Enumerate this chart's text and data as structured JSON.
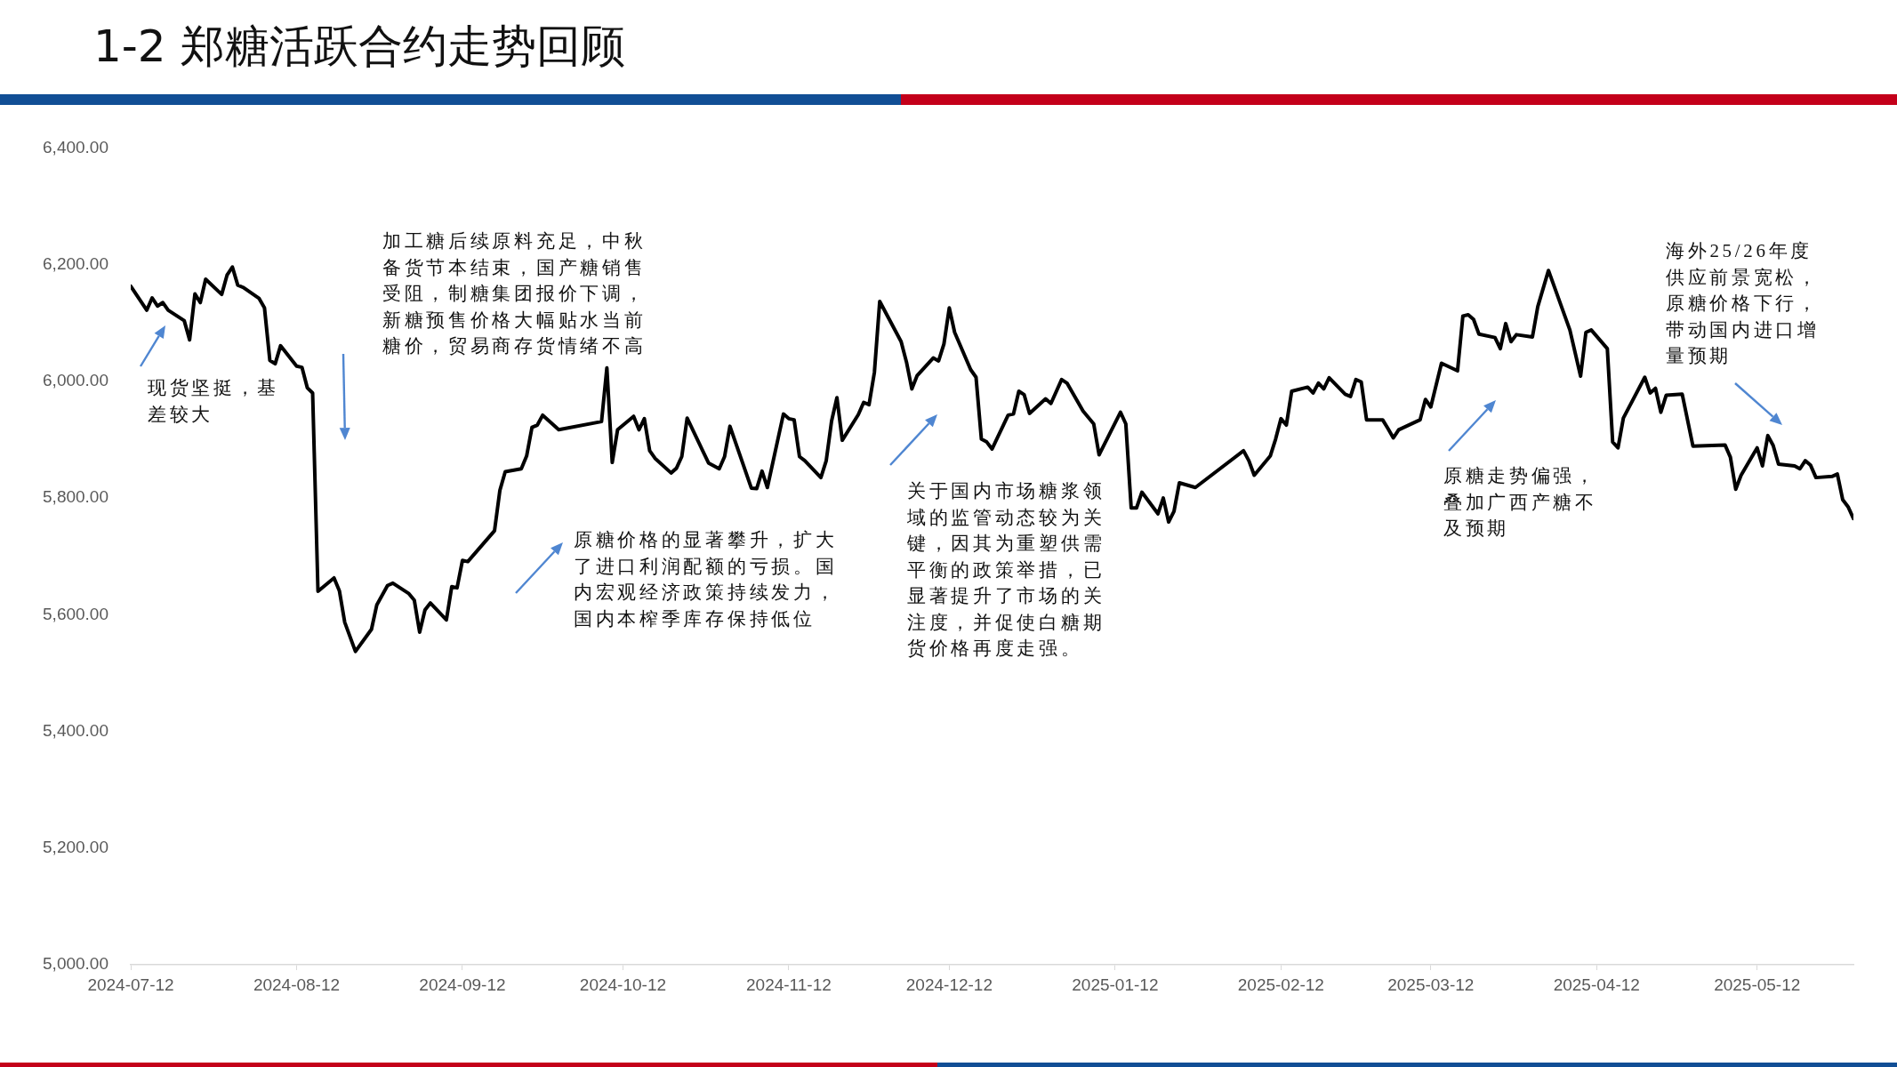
{
  "chart_data": {
    "type": "line",
    "title": "1-2 郑糖活跃合约走势回顾",
    "x": [
      "2024-07-12",
      "2024-07-15",
      "2024-07-16",
      "2024-07-17",
      "2024-07-18",
      "2024-07-19",
      "2024-07-22",
      "2024-07-23",
      "2024-07-24",
      "2024-07-25",
      "2024-07-26",
      "2024-07-29",
      "2024-07-30",
      "2024-07-31",
      "2024-08-01",
      "2024-08-02",
      "2024-08-05",
      "2024-08-06",
      "2024-08-07",
      "2024-08-08",
      "2024-08-09",
      "2024-08-12",
      "2024-08-13",
      "2024-08-14",
      "2024-08-15",
      "2024-08-16",
      "2024-08-19",
      "2024-08-20",
      "2024-08-21",
      "2024-08-23",
      "2024-08-26",
      "2024-08-27",
      "2024-08-29",
      "2024-08-30",
      "2024-09-02",
      "2024-09-03",
      "2024-09-04",
      "2024-09-05",
      "2024-09-06",
      "2024-09-09",
      "2024-09-10",
      "2024-09-11",
      "2024-09-12",
      "2024-09-13",
      "2024-09-18",
      "2024-09-19",
      "2024-09-20",
      "2024-09-23",
      "2024-09-24",
      "2024-09-25",
      "2024-09-26",
      "2024-09-27",
      "2024-09-30",
      "2024-10-08",
      "2024-10-09",
      "2024-10-10",
      "2024-10-11",
      "2024-10-14",
      "2024-10-15",
      "2024-10-16",
      "2024-10-17",
      "2024-10-18",
      "2024-10-21",
      "2024-10-22",
      "2024-10-23",
      "2024-10-24",
      "2024-10-28",
      "2024-10-30",
      "2024-10-31",
      "2024-11-01",
      "2024-11-05",
      "2024-11-06",
      "2024-11-07",
      "2024-11-08",
      "2024-11-11",
      "2024-11-12",
      "2024-11-13",
      "2024-11-14",
      "2024-11-15",
      "2024-11-18",
      "2024-11-19",
      "2024-11-20",
      "2024-11-21",
      "2024-11-22",
      "2024-11-25",
      "2024-11-26",
      "2024-11-27",
      "2024-11-28",
      "2024-11-29",
      "2024-12-03",
      "2024-12-04",
      "2024-12-05",
      "2024-12-06",
      "2024-12-09",
      "2024-12-10",
      "2024-12-11",
      "2024-12-12",
      "2024-12-13",
      "2024-12-16",
      "2024-12-17",
      "2024-12-18",
      "2024-12-19",
      "2024-12-20",
      "2024-12-23",
      "2024-12-24",
      "2024-12-25",
      "2024-12-26",
      "2024-12-27",
      "2024-12-30",
      "2024-12-31",
      "2025-01-02",
      "2025-01-03",
      "2025-01-06",
      "2025-01-07",
      "2025-01-08",
      "2025-01-09",
      "2025-01-13",
      "2025-01-14",
      "2025-01-15",
      "2025-01-16",
      "2025-01-17",
      "2025-01-20",
      "2025-01-21",
      "2025-01-22",
      "2025-01-23",
      "2025-01-24",
      "2025-01-27",
      "2025-02-05",
      "2025-02-06",
      "2025-02-07",
      "2025-02-10",
      "2025-02-11",
      "2025-02-12",
      "2025-02-13",
      "2025-02-14",
      "2025-02-17",
      "2025-02-18",
      "2025-02-19",
      "2025-02-20",
      "2025-02-21",
      "2025-02-24",
      "2025-02-25",
      "2025-02-26",
      "2025-02-27",
      "2025-02-28",
      "2025-03-03",
      "2025-03-04",
      "2025-03-05",
      "2025-03-06",
      "2025-03-10",
      "2025-03-11",
      "2025-03-12",
      "2025-03-14",
      "2025-03-17",
      "2025-03-18",
      "2025-03-19",
      "2025-03-20",
      "2025-03-21",
      "2025-03-24",
      "2025-03-25",
      "2025-03-26",
      "2025-03-27",
      "2025-03-28",
      "2025-03-31",
      "2025-04-01",
      "2025-04-03",
      "2025-04-07",
      "2025-04-09",
      "2025-04-10",
      "2025-04-11",
      "2025-04-14",
      "2025-04-15",
      "2025-04-16",
      "2025-04-17",
      "2025-04-21",
      "2025-04-22",
      "2025-04-23",
      "2025-04-24",
      "2025-04-25",
      "2025-04-28",
      "2025-04-30",
      "2025-05-06",
      "2025-05-07",
      "2025-05-08",
      "2025-05-09",
      "2025-05-12",
      "2025-05-13",
      "2025-05-14",
      "2025-05-15",
      "2025-05-16",
      "2025-05-19",
      "2025-05-20",
      "2025-05-21",
      "2025-05-22",
      "2025-05-23",
      "2025-05-26",
      "2025-05-27",
      "2025-05-28",
      "2025-05-29",
      "2025-05-30"
    ],
    "values": [
      6163,
      6122,
      6143,
      6129,
      6135,
      6122,
      6104,
      6071,
      6150,
      6135,
      6175,
      6149,
      6182,
      6196,
      6165,
      6161,
      6142,
      6126,
      6036,
      6030,
      6061,
      6026,
      6024,
      5989,
      5980,
      5640,
      5663,
      5641,
      5587,
      5537,
      5575,
      5617,
      5650,
      5654,
      5636,
      5625,
      5570,
      5608,
      5620,
      5591,
      5648,
      5646,
      5693,
      5691,
      5744,
      5813,
      5845,
      5850,
      5872,
      5921,
      5925,
      5942,
      5917,
      5931,
      6023,
      5861,
      5917,
      5940,
      5917,
      5936,
      5881,
      5868,
      5843,
      5851,
      5871,
      5937,
      5860,
      5850,
      5871,
      5923,
      5817,
      5816,
      5846,
      5818,
      5944,
      5936,
      5934,
      5871,
      5864,
      5835,
      5864,
      5932,
      5972,
      5899,
      5943,
      5964,
      5960,
      6015,
      6137,
      6068,
      6033,
      5987,
      6010,
      6040,
      6035,
      6064,
      6126,
      6084,
      6020,
      6007,
      5901,
      5896,
      5884,
      5942,
      5944,
      5983,
      5977,
      5945,
      5970,
      5962,
      6003,
      5997,
      5949,
      5938,
      5927,
      5874,
      5947,
      5927,
      5783,
      5783,
      5810,
      5773,
      5800,
      5759,
      5777,
      5826,
      5818,
      5881,
      5864,
      5839,
      5872,
      5901,
      5936,
      5925,
      5983,
      5990,
      5980,
      5997,
      5987,
      6006,
      5978,
      5974,
      6003,
      5999,
      5934,
      5934,
      5919,
      5903,
      5917,
      5934,
      5969,
      5956,
      6031,
      6018,
      6112,
      6114,
      6106,
      6081,
      6075,
      6056,
      6099,
      6068,
      6080,
      6076,
      6128,
      6190,
      6088,
      6009,
      6084,
      6088,
      6056,
      5896,
      5886,
      5937,
      6007,
      5980,
      5988,
      5947,
      5976,
      5978,
      5889,
      5891,
      5870,
      5815,
      5839,
      5886,
      5855,
      5907,
      5890,
      5858,
      5855,
      5850,
      5864,
      5856,
      5835,
      5837,
      5841,
      5797,
      5785,
      5765
    ],
    "color": "#000000",
    "marker": "none",
    "line_style": "solid",
    "grid": false,
    "legend": false,
    "xlim": [
      "2024-07-12",
      "2025-05-30"
    ],
    "xticks": [
      "2024-07-12",
      "2024-08-12",
      "2024-09-12",
      "2024-10-12",
      "2024-11-12",
      "2024-12-12",
      "2025-01-12",
      "2025-02-12",
      "2025-03-12",
      "2025-04-12",
      "2025-05-12"
    ],
    "ylim": [
      5000,
      6400
    ],
    "yticks": [
      {
        "value": 5000,
        "label": "5,000.00"
      },
      {
        "value": 5200,
        "label": "5,200.00"
      },
      {
        "value": 5400,
        "label": "5,400.00"
      },
      {
        "value": 5600,
        "label": "5,600.00"
      },
      {
        "value": 5800,
        "label": "5,800.00"
      },
      {
        "value": 6000,
        "label": "6,000.00"
      },
      {
        "value": 6200,
        "label": "6,200.00"
      },
      {
        "value": 6400,
        "label": "6,400.00"
      }
    ],
    "annotations": [
      "现货坚挺，基差较大",
      "加工糖后续原料充足，中秋备货节本结束，国产糖销售受阻，制糖集团报价下调，新糖预售价格大幅贴水当前糖价，贸易商存货情绪不高",
      "原糖价格的显著攀升，扩大了进口利润配额的亏损。国内宏观经济政策持续发力，国内本榨季库存保持低位",
      "关于国内市场糖浆领域的监管动态较为关键，因其为重塑供需平衡的政策举措，已显著提升了市场的关注度，并促使白糖期货价格再度走强。",
      "原糖走势偏强，叠加广西产糖不及预期",
      "海外25/26年度供应前景宽松，原糖价格下行，带动国内进口增量预期"
    ]
  }
}
